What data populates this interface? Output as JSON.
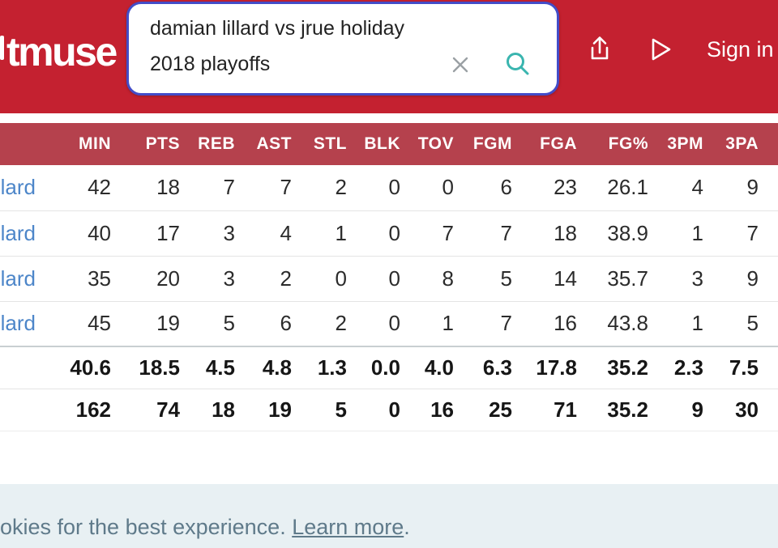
{
  "brand": {
    "logo_text": "tmuse"
  },
  "nav": {
    "sign_in_label": "Sign in",
    "icons": [
      "share-icon",
      "play-icon"
    ]
  },
  "search": {
    "query_line1": "damian lillard vs jrue holiday",
    "query_line2": "2018 playoffs",
    "icons": [
      "clear-icon",
      "search-icon"
    ]
  },
  "table": {
    "columns": [
      "MIN",
      "PTS",
      "REB",
      "AST",
      "STL",
      "BLK",
      "TOV",
      "FGM",
      "FGA",
      "FG%",
      "3PM",
      "3PA"
    ],
    "rows": [
      {
        "player": "lard",
        "values": [
          "42",
          "18",
          "7",
          "7",
          "2",
          "0",
          "0",
          "6",
          "23",
          "26.1",
          "4",
          "9"
        ]
      },
      {
        "player": "lard",
        "values": [
          "40",
          "17",
          "3",
          "4",
          "1",
          "0",
          "7",
          "7",
          "18",
          "38.9",
          "1",
          "7"
        ]
      },
      {
        "player": "lard",
        "values": [
          "35",
          "20",
          "3",
          "2",
          "0",
          "0",
          "8",
          "5",
          "14",
          "35.7",
          "3",
          "9"
        ]
      },
      {
        "player": "lard",
        "values": [
          "45",
          "19",
          "5",
          "6",
          "2",
          "0",
          "1",
          "7",
          "16",
          "43.8",
          "1",
          "5"
        ]
      }
    ],
    "averages_row": [
      "40.6",
      "18.5",
      "4.5",
      "4.8",
      "1.3",
      "0.0",
      "4.0",
      "6.3",
      "17.8",
      "35.2",
      "2.3",
      "7.5"
    ],
    "totals_row": [
      "162",
      "74",
      "18",
      "19",
      "5",
      "0",
      "16",
      "25",
      "71",
      "35.2",
      "9",
      "30"
    ]
  },
  "cookie_banner": {
    "text_prefix": "okies for the best experience. ",
    "link_label": "Learn more",
    "suffix": "."
  },
  "colors": {
    "navbar_red": "#c42130",
    "table_header_red": "#b5414d",
    "search_border_blue": "#434cc8",
    "search_icon_teal": "#3ab5af",
    "clear_icon_gray": "#9aa0a4",
    "player_link_blue": "#4d86c9",
    "cookie_bg": "#e8f0f3",
    "cookie_text": "#5f7a8a"
  }
}
